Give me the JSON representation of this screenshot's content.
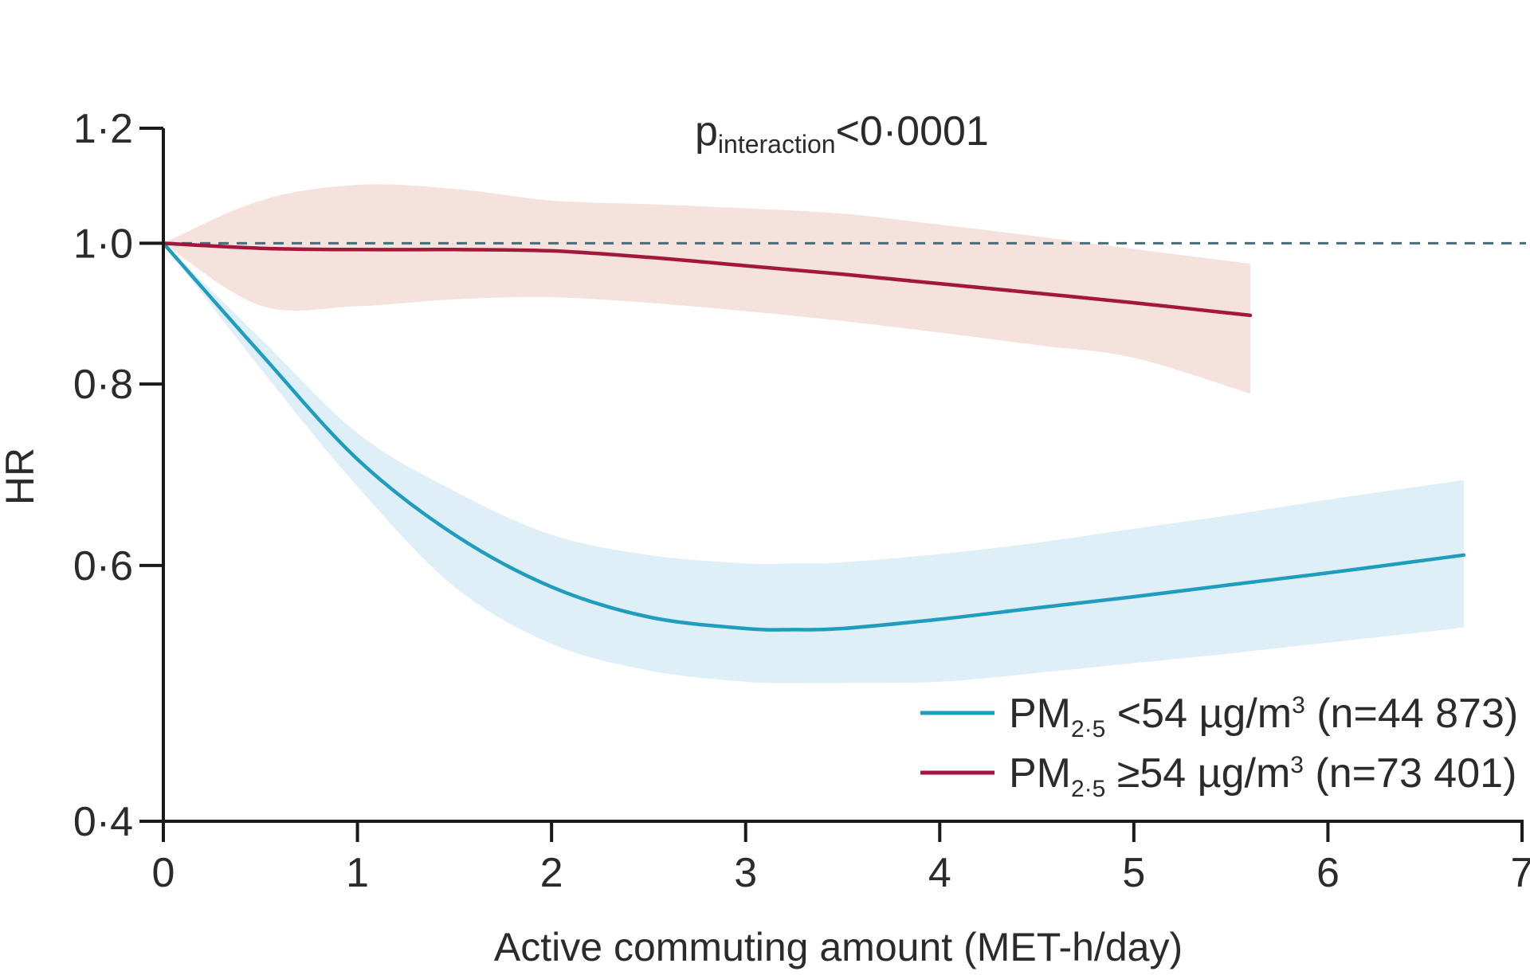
{
  "chart_data": {
    "type": "line",
    "title": "",
    "annotation": {
      "p": "p",
      "sub": "interaction",
      "rest": "<0·0001"
    },
    "xlabel": "Active commuting amount (MET-h/day)",
    "ylabel": "HR",
    "xlim": [
      0,
      7
    ],
    "ylim": [
      0.4,
      1.2
    ],
    "y_scale": "log",
    "x_ticks": [
      0,
      1,
      2,
      3,
      4,
      5,
      6,
      7
    ],
    "x_tick_labels": [
      "0",
      "1",
      "2",
      "3",
      "4",
      "5",
      "6",
      "7"
    ],
    "y_ticks": [
      0.4,
      0.6,
      0.8,
      1.0,
      1.2
    ],
    "y_tick_labels": [
      "0·4",
      "0·6",
      "0·8",
      "1·0",
      "1·2"
    ],
    "reference_line": {
      "y": 1.0,
      "style": "dashed",
      "color": "#4a6b78"
    },
    "series": [
      {
        "name": "PM2·5 <54 µg/m³ (n=44 873)",
        "legend": {
          "pre": "PM",
          "sub": "2·5",
          "mid": " <54 µg/m",
          "sup": "3",
          "post": " (n=44 873)"
        },
        "color": "#1f9dbf",
        "band_color": "#dfeff7",
        "x": [
          0,
          0.5,
          1,
          1.5,
          2,
          2.5,
          3,
          3.25,
          3.5,
          4,
          4.5,
          5,
          5.5,
          6,
          6.5,
          6.7
        ],
        "y": [
          1.0,
          0.84,
          0.71,
          0.63,
          0.58,
          0.553,
          0.543,
          0.542,
          0.543,
          0.551,
          0.561,
          0.571,
          0.582,
          0.593,
          0.605,
          0.61
        ],
        "lower": [
          1.0,
          0.82,
          0.68,
          0.58,
          0.53,
          0.508,
          0.499,
          0.498,
          0.498,
          0.499,
          0.506,
          0.514,
          0.522,
          0.531,
          0.54,
          0.544
        ],
        "upper": [
          1.0,
          0.86,
          0.74,
          0.675,
          0.63,
          0.61,
          0.602,
          0.602,
          0.603,
          0.611,
          0.622,
          0.636,
          0.65,
          0.666,
          0.681,
          0.687
        ]
      },
      {
        "name": "PM2·5 ≥54 µg/m³ (n=73 401)",
        "legend": {
          "pre": "PM",
          "sub": "2·5",
          "mid": " ≥54 µg/m",
          "sup": "3",
          "post": " (n=73 401)"
        },
        "color": "#a3173d",
        "band_color": "#f5e2dd",
        "x": [
          0,
          0.5,
          1,
          1.5,
          2,
          2.5,
          3,
          3.5,
          4,
          4.5,
          5,
          5.6
        ],
        "y": [
          1.0,
          0.992,
          0.99,
          0.99,
          0.988,
          0.978,
          0.965,
          0.952,
          0.938,
          0.924,
          0.91,
          0.892
        ],
        "lower": [
          1.0,
          0.906,
          0.905,
          0.915,
          0.918,
          0.91,
          0.898,
          0.884,
          0.868,
          0.851,
          0.834,
          0.788
        ],
        "upper": [
          1.0,
          1.07,
          1.097,
          1.09,
          1.07,
          1.064,
          1.057,
          1.048,
          1.03,
          1.011,
          0.991,
          0.968
        ]
      }
    ]
  }
}
